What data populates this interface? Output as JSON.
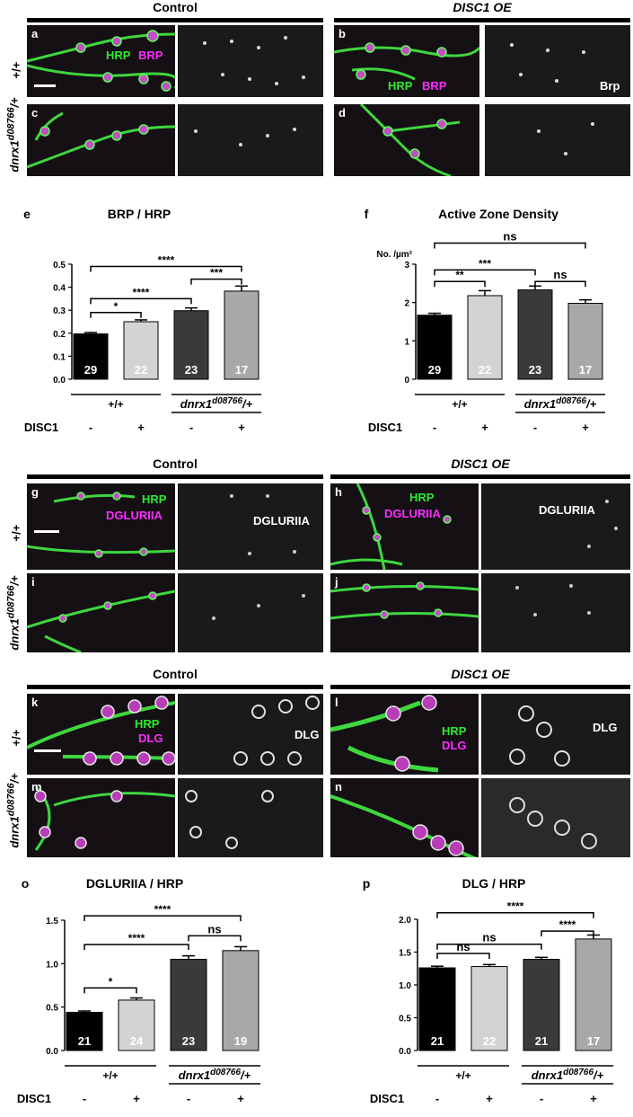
{
  "section1": {
    "control_label": "Control",
    "oe_label": "DISC1 OE",
    "row1_label": "+/+",
    "row2_label_main": "dnrx1",
    "row2_label_sup": "d08766",
    "row2_label_end": "/+",
    "panels": {
      "a": "a",
      "b": "b",
      "c": "c",
      "d": "d"
    },
    "hrp": "HRP",
    "brp": "BRP",
    "brp_gray": "Brp"
  },
  "section2": {
    "control_label": "Control",
    "oe_label": "DISC1 OE",
    "panels": {
      "g": "g",
      "h": "h",
      "i": "i",
      "j": "j"
    },
    "hrp": "HRP",
    "marker": "DGLURIIA"
  },
  "section3": {
    "control_label": "Control",
    "oe_label": "DISC1 OE",
    "panels": {
      "k": "k",
      "l": "l",
      "m": "m",
      "n": "n"
    },
    "hrp": "HRP",
    "marker": "DLG"
  },
  "chart_data": [
    {
      "id": "e",
      "letter": "e",
      "type": "bar",
      "title": "BRP / HRP",
      "ylabel": "",
      "ylim": [
        0,
        0.5
      ],
      "yticks": [
        "0.0",
        "0.1",
        "0.2",
        "0.3",
        "0.4",
        "0.5"
      ],
      "values": [
        0.197,
        0.25,
        0.298,
        0.383
      ],
      "errors": [
        0.006,
        0.008,
        0.012,
        0.022
      ],
      "n": [
        "29",
        "22",
        "23",
        "17"
      ],
      "colors": [
        "#000000",
        "#d3d3d3",
        "#3a3a3a",
        "#a8a8a8"
      ],
      "sig": [
        {
          "a": 0,
          "b": 1,
          "label": "*",
          "y": 0.29
        },
        {
          "a": 0,
          "b": 2,
          "label": "****",
          "y": 0.35
        },
        {
          "a": 2,
          "b": 3,
          "label": "***",
          "y": 0.435
        },
        {
          "a": 0,
          "b": 3,
          "label": "****",
          "y": 0.49
        }
      ],
      "group1": "+/+",
      "group2_main": "dnrx1",
      "group2_sup": "d08766",
      "group2_end": "/+",
      "disc_label": "DISC1",
      "disc": [
        "-",
        "+",
        "-",
        "+"
      ]
    },
    {
      "id": "f",
      "letter": "f",
      "type": "bar",
      "title": "Active Zone Density",
      "ylabel": "No. /µm²",
      "ylim": [
        0,
        3
      ],
      "yticks": [
        "0",
        "1",
        "2",
        "3"
      ],
      "values": [
        1.67,
        2.18,
        2.33,
        1.98
      ],
      "errors": [
        0.05,
        0.13,
        0.1,
        0.09
      ],
      "n": [
        "29",
        "22",
        "23",
        "17"
      ],
      "colors": [
        "#000000",
        "#d3d3d3",
        "#3a3a3a",
        "#a8a8a8"
      ],
      "sig": [
        {
          "a": 0,
          "b": 1,
          "label": "**",
          "y": 2.55
        },
        {
          "a": 0,
          "b": 2,
          "label": "***",
          "y": 2.85
        },
        {
          "a": 2,
          "b": 3,
          "label": "ns",
          "y": 2.55
        },
        {
          "a": 0,
          "b": 3,
          "label": "ns",
          "y": 3.55
        }
      ],
      "group1": "+/+",
      "group2_main": "dnrx1",
      "group2_sup": "d08766",
      "group2_end": "/+",
      "disc_label": "DISC1",
      "disc": [
        "-",
        "+",
        "-",
        "+"
      ]
    },
    {
      "id": "o",
      "letter": "o",
      "type": "bar",
      "title": "DGLURIIA / HRP",
      "ylabel": "",
      "ylim": [
        0,
        1.5
      ],
      "yticks": [
        "0.0",
        "0.5",
        "1.0",
        "1.5"
      ],
      "values": [
        0.44,
        0.58,
        1.05,
        1.15
      ],
      "errors": [
        0.015,
        0.025,
        0.04,
        0.045
      ],
      "n": [
        "21",
        "24",
        "23",
        "19"
      ],
      "colors": [
        "#000000",
        "#d3d3d3",
        "#3a3a3a",
        "#a8a8a8"
      ],
      "sig": [
        {
          "a": 0,
          "b": 1,
          "label": "*",
          "y": 0.72
        },
        {
          "a": 0,
          "b": 2,
          "label": "****",
          "y": 1.22
        },
        {
          "a": 2,
          "b": 3,
          "label": "ns",
          "y": 1.32
        },
        {
          "a": 0,
          "b": 3,
          "label": "****",
          "y": 1.55
        }
      ],
      "group1": "+/+",
      "group2_main": "dnrx1",
      "group2_sup": "d08766",
      "group2_end": "/+",
      "disc_label": "DISC1",
      "disc": [
        "-",
        "+",
        "-",
        "+"
      ]
    },
    {
      "id": "p",
      "letter": "p",
      "type": "bar",
      "title": "DLG / HRP",
      "ylabel": "",
      "ylim": [
        0,
        2.0
      ],
      "yticks": [
        "0.0",
        "0.5",
        "1.0",
        "1.5",
        "2.0"
      ],
      "values": [
        1.26,
        1.28,
        1.39,
        1.7
      ],
      "errors": [
        0.025,
        0.03,
        0.03,
        0.06
      ],
      "n": [
        "21",
        "22",
        "21",
        "17"
      ],
      "colors": [
        "#000000",
        "#d3d3d3",
        "#3a3a3a",
        "#a8a8a8"
      ],
      "sig": [
        {
          "a": 0,
          "b": 1,
          "label": "ns",
          "y": 1.48
        },
        {
          "a": 0,
          "b": 2,
          "label": "ns",
          "y": 1.62
        },
        {
          "a": 2,
          "b": 3,
          "label": "****",
          "y": 1.82
        },
        {
          "a": 0,
          "b": 3,
          "label": "****",
          "y": 2.1
        }
      ],
      "group1": "+/+",
      "group2_main": "dnrx1",
      "group2_sup": "d08766",
      "group2_end": "/+",
      "disc_label": "DISC1",
      "disc": [
        "-",
        "+",
        "-",
        "+"
      ]
    }
  ]
}
